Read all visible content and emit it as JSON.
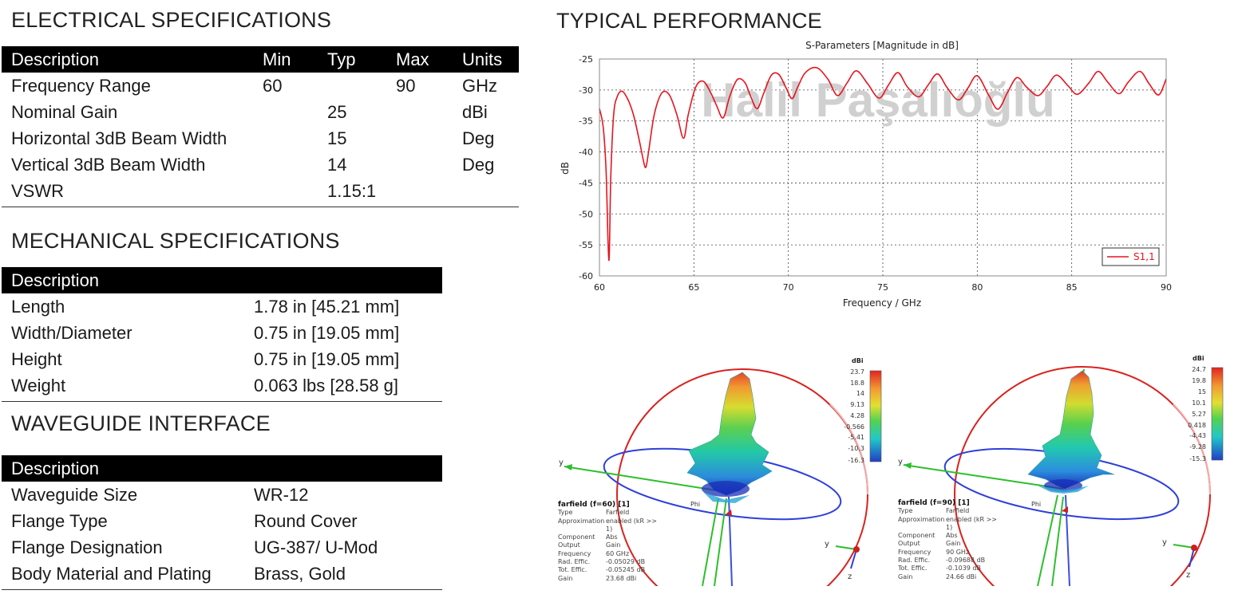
{
  "electrical": {
    "title": "ELECTRICAL SPECIFICATIONS",
    "headers": [
      "Description",
      "Min",
      "Typ",
      "Max",
      "Units"
    ],
    "rows": [
      [
        "Frequency Range",
        "60",
        "",
        "90",
        "GHz"
      ],
      [
        "Nominal Gain",
        "",
        "25",
        "",
        "dBi"
      ],
      [
        "Horizontal 3dB Beam Width",
        "",
        "15",
        "",
        "Deg"
      ],
      [
        "Vertical 3dB Beam Width",
        "",
        "14",
        "",
        "Deg"
      ],
      [
        "VSWR",
        "",
        "1.15:1",
        "",
        ""
      ]
    ]
  },
  "mechanical": {
    "title": "MECHANICAL SPECIFICATIONS",
    "header": "Description",
    "rows": [
      [
        "Length",
        "1.78 in [45.21 mm]"
      ],
      [
        "Width/Diameter",
        "0.75 in [19.05 mm]"
      ],
      [
        "Height",
        "0.75 in [19.05 mm]"
      ],
      [
        "Weight",
        "0.063 lbs [28.58 g]"
      ]
    ]
  },
  "waveguide": {
    "title": "WAVEGUIDE INTERFACE",
    "header": "Description",
    "rows": [
      [
        "Waveguide Size",
        "WR-12"
      ],
      [
        "Flange Type",
        "Round Cover"
      ],
      [
        "Flange Designation",
        "UG-387/ U-Mod"
      ],
      [
        "Body Material and Plating",
        "Brass, Gold"
      ]
    ]
  },
  "performance": {
    "title": "TYPICAL PERFORMANCE",
    "watermark": "Halil Paşalıoğlu"
  },
  "chart_data": {
    "type": "line",
    "title": "S-Parameters [Magnitude in dB]",
    "xlabel": "Frequency / GHz",
    "ylabel": "dB",
    "xlim": [
      60,
      90
    ],
    "ylim": [
      -60,
      -25
    ],
    "xticks": [
      "60",
      "65",
      "70",
      "75",
      "80",
      "85",
      "90"
    ],
    "yticks": [
      "-25",
      "-30",
      "-35",
      "-40",
      "-45",
      "-50",
      "-55",
      "-60"
    ],
    "grid": true,
    "legend_position": "bottom-right",
    "series": [
      {
        "name": "S1,1",
        "color": "#e8141e",
        "x": [
          60.0,
          60.2,
          60.35,
          60.5,
          60.6,
          60.75,
          60.95,
          61.2,
          61.5,
          61.8,
          62.1,
          62.3,
          62.45,
          62.6,
          62.9,
          63.3,
          63.7,
          64.1,
          64.45,
          64.7,
          65.1,
          65.5,
          65.9,
          66.2,
          66.55,
          66.9,
          67.3,
          67.7,
          68.0,
          68.35,
          68.7,
          69.1,
          69.5,
          69.9,
          70.2,
          70.5,
          70.9,
          71.5,
          72.1,
          72.6,
          73.1,
          73.6,
          74.2,
          74.8,
          75.3,
          75.8,
          76.3,
          76.9,
          77.4,
          77.9,
          78.4,
          79.0,
          79.5,
          80.0,
          80.6,
          81.1,
          81.6,
          82.1,
          82.6,
          83.2,
          83.7,
          84.2,
          84.8,
          85.3,
          85.9,
          86.4,
          86.9,
          87.5,
          88.0,
          88.6,
          89.1,
          89.6,
          90.0
        ],
        "values": [
          -33,
          -36,
          -43,
          -57.5,
          -44,
          -34,
          -31,
          -30.2,
          -31.5,
          -34,
          -38,
          -41,
          -42.5,
          -40,
          -34,
          -30.5,
          -30.8,
          -34,
          -37.8,
          -34,
          -29.5,
          -28.6,
          -30.5,
          -32.5,
          -34.5,
          -31,
          -28.3,
          -28.8,
          -31,
          -33,
          -30.5,
          -27.6,
          -27.5,
          -29.8,
          -31.4,
          -29.5,
          -27.2,
          -26.4,
          -28.3,
          -30.9,
          -28.9,
          -26.9,
          -29,
          -31.3,
          -29.2,
          -27.2,
          -29.5,
          -31.1,
          -29.2,
          -27.4,
          -29.6,
          -31.6,
          -29.7,
          -27.7,
          -30.8,
          -33.1,
          -30.4,
          -28,
          -29.5,
          -30.9,
          -29.4,
          -27.6,
          -29.3,
          -30.7,
          -28.9,
          -27,
          -28.7,
          -30.6,
          -28.7,
          -27,
          -29,
          -30.8,
          -28.2
        ]
      }
    ]
  },
  "farfield_left": {
    "title": "farfield (f=60) [1]",
    "scale_unit": "dBi",
    "scale_ticks": [
      "23.7",
      "18.8",
      "14",
      "9.13",
      "4.28",
      "-0.566",
      "-5.41",
      "-10.3",
      "-16.3"
    ],
    "props": [
      [
        "Type",
        "Farfield"
      ],
      [
        "Approximation",
        "enabled (kR >> 1)"
      ],
      [
        "Component",
        "Abs"
      ],
      [
        "Output",
        "Gain"
      ],
      [
        "Frequency",
        "60 GHz"
      ],
      [
        "Rad. Effic.",
        "-0.05029 dB"
      ],
      [
        "Tot. Effic.",
        "-0.05245 dB"
      ],
      [
        "Gain",
        "23.68 dBi"
      ]
    ],
    "axes": {
      "y": "y",
      "z": "z",
      "theta": "Phi"
    }
  },
  "farfield_right": {
    "title": "farfield (f=90) [1]",
    "scale_unit": "dBi",
    "scale_ticks": [
      "24.7",
      "19.8",
      "15",
      "10.1",
      "5.27",
      "0.418",
      "-4.43",
      "-9.28",
      "-15.3"
    ],
    "props": [
      [
        "Type",
        "Farfield"
      ],
      [
        "Approximation",
        "enabled (kR >> 1)"
      ],
      [
        "Component",
        "Abs"
      ],
      [
        "Output",
        "Gain"
      ],
      [
        "Frequency",
        "90 GHz"
      ],
      [
        "Rad. Effic.",
        "-0.09688 dB"
      ],
      [
        "Tot. Effic.",
        "-0.1039 dB"
      ],
      [
        "Gain",
        "24.66 dBi"
      ]
    ],
    "axes": {
      "y": "y",
      "z": "z",
      "theta": "Phi"
    }
  }
}
